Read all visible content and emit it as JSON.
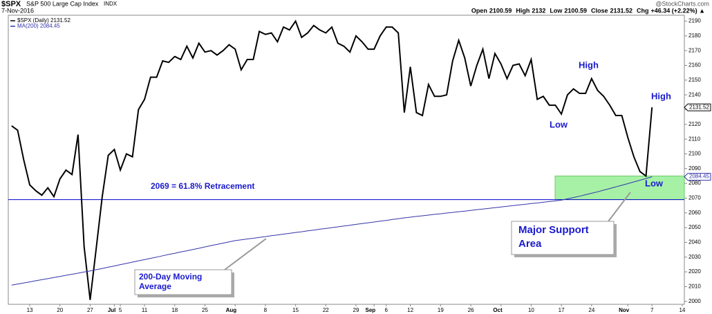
{
  "header": {
    "symbol": "$SPX",
    "name": "S&P 500 Large Cap Index",
    "exchange": "INDX",
    "date": "7-Nov-2016",
    "source": "@StockCharts.com",
    "quote": [
      {
        "label": "Open",
        "value": 2100.59
      },
      {
        "label": "High",
        "value": 2132.0
      },
      {
        "label": "Low",
        "value": 2100.59
      },
      {
        "label": "Close",
        "value": 2131.52
      },
      {
        "label": "Chg",
        "value": "+46.34 (+2.22%) ▲"
      }
    ]
  },
  "chart_data": {
    "type": "line",
    "categories": [
      null,
      null,
      null,
      "13",
      null,
      null,
      null,
      null,
      "20",
      null,
      null,
      null,
      null,
      "27",
      null,
      null,
      null,
      "Jul",
      "5",
      null,
      null,
      null,
      "11",
      null,
      null,
      null,
      null,
      "18",
      null,
      null,
      null,
      null,
      "25",
      null,
      null,
      null,
      null,
      "Aug",
      null,
      null,
      null,
      null,
      "8",
      null,
      null,
      null,
      null,
      "15",
      null,
      null,
      null,
      null,
      "22",
      null,
      null,
      null,
      null,
      "29",
      null,
      null,
      "Sep",
      null,
      "6",
      null,
      null,
      null,
      "12",
      null,
      null,
      null,
      null,
      "19",
      null,
      null,
      null,
      null,
      "26",
      null,
      null,
      null,
      null,
      "Oct",
      null,
      null,
      null,
      null,
      "10",
      null,
      null,
      null,
      null,
      "17",
      null,
      null,
      null,
      null,
      "24",
      null,
      null,
      null,
      null,
      null,
      "Nov",
      null,
      null,
      null,
      "7",
      null,
      null,
      null,
      null,
      "14"
    ],
    "series": [
      {
        "name": "$SPX (Daily) 2131.52",
        "color": "#000000",
        "values": [
          2119,
          2116,
          2096,
          2079,
          2075,
          2072,
          2077,
          2071,
          2083,
          2089,
          2086,
          2113,
          2037,
          2001,
          2036,
          2071,
          2099,
          2103,
          2089,
          2100,
          2098,
          2130,
          2137,
          2152,
          2152,
          2163,
          2162,
          2166,
          2164,
          2173,
          2165,
          2175,
          2169,
          2170,
          2167,
          2170,
          2174,
          2171,
          2157,
          2164,
          2164,
          2183,
          2181,
          2182,
          2176,
          2186,
          2184,
          2190,
          2179,
          2182,
          2187,
          2184,
          2182,
          2186,
          2175,
          2173,
          2169,
          2180,
          2176,
          2171,
          2171,
          2180,
          2186,
          2186,
          2182,
          2128,
          2159,
          2128,
          2126,
          2147,
          2139,
          2139,
          2140,
          2163,
          2177,
          2165,
          2146,
          2160,
          2171,
          2151,
          2168,
          2161,
          2151,
          2160,
          2161,
          2153,
          2164,
          2137,
          2139,
          2133,
          2133,
          2127,
          2140,
          2144,
          2141,
          2141,
          2151,
          2143,
          2139,
          2133,
          2126,
          2126,
          2111,
          2098,
          2088,
          2085,
          2131.52,
          null,
          null,
          null,
          null,
          null
        ]
      },
      {
        "name": "MA(200) 2084.45",
        "color": "#3333aa",
        "values": [
          2011.0,
          2011.7,
          2012.5,
          2013.2,
          2014.0,
          2014.7,
          2015.4,
          2016.2,
          2016.9,
          2017.7,
          2018.4,
          2019.1,
          2019.9,
          2020.6,
          2021.5,
          2022.3,
          2023.2,
          2024.0,
          2024.9,
          2025.7,
          2026.6,
          2027.5,
          2028.3,
          2029.2,
          2030.0,
          2030.9,
          2031.8,
          2032.6,
          2033.5,
          2034.3,
          2035.2,
          2036.0,
          2036.9,
          2037.8,
          2038.6,
          2039.5,
          2040.3,
          2041.2,
          2041.7,
          2042.3,
          2042.8,
          2043.4,
          2043.9,
          2044.5,
          2045.0,
          2045.6,
          2046.1,
          2046.7,
          2047.2,
          2047.8,
          2048.3,
          2048.9,
          2049.4,
          2050.0,
          2050.5,
          2051.1,
          2051.6,
          2052.2,
          2052.7,
          2053.3,
          2053.8,
          2054.4,
          2054.9,
          2055.5,
          2056.0,
          2056.6,
          2057.1,
          2057.6,
          2058.0,
          2058.5,
          2059.0,
          2059.4,
          2059.9,
          2060.3,
          2060.8,
          2061.2,
          2061.7,
          2062.2,
          2062.6,
          2063.1,
          2063.5,
          2064.0,
          2064.5,
          2064.9,
          2065.4,
          2065.8,
          2066.3,
          2066.7,
          2067.2,
          2067.7,
          2068.1,
          2068.6,
          2069.5,
          2070.4,
          2071.3,
          2072.3,
          2073.3,
          2074.3,
          2075.4,
          2076.5,
          2077.6,
          2078.7,
          2079.8,
          2081.0,
          2082.1,
          2083.3,
          2084.45,
          null,
          null,
          null,
          null,
          null
        ]
      }
    ],
    "ylim": [
      1998,
      2194
    ],
    "yticks": [
      2000,
      2010,
      2020,
      2030,
      2040,
      2050,
      2060,
      2070,
      2080,
      2090,
      2100,
      2110,
      2120,
      2130,
      2140,
      2150,
      2160,
      2170,
      2180,
      2190
    ],
    "retracement": {
      "value": 2069,
      "label": "2069 = 61.8% Retracement",
      "color": "#0000cc"
    },
    "support_zone": {
      "range": [
        2069,
        2085
      ],
      "color": "#90ee90"
    },
    "annotations": [
      "Low",
      "High",
      "High",
      "Low"
    ],
    "callouts": [
      "Major Support Area",
      "200-Day Moving Average"
    ]
  }
}
